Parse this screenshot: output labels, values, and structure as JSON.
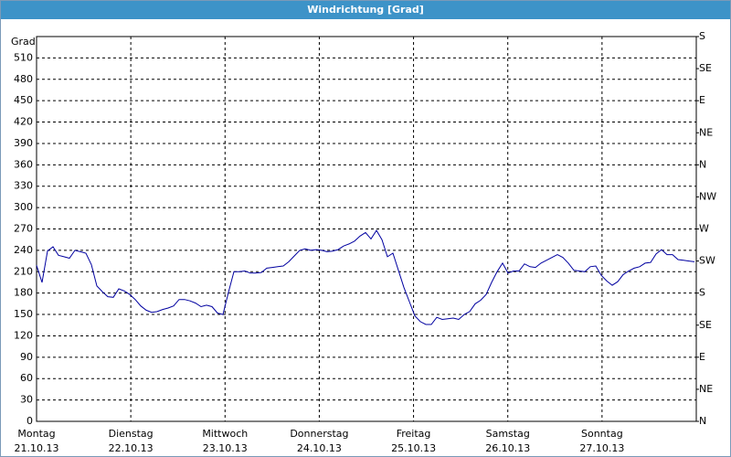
{
  "chart_data": {
    "type": "line",
    "title": "Windrichtung [Grad]",
    "y_label": "Grad",
    "ylim": [
      0,
      540
    ],
    "yticks": [
      0,
      30,
      60,
      90,
      120,
      150,
      180,
      210,
      240,
      270,
      300,
      330,
      360,
      390,
      420,
      450,
      480,
      510
    ],
    "y2lim": [
      0,
      540
    ],
    "y2ticks": [
      {
        "value": 0,
        "label": "N"
      },
      {
        "value": 45,
        "label": "NE"
      },
      {
        "value": 90,
        "label": "E"
      },
      {
        "value": 135,
        "label": "SE"
      },
      {
        "value": 180,
        "label": "S"
      },
      {
        "value": 225,
        "label": "SW"
      },
      {
        "value": 270,
        "label": "W"
      },
      {
        "value": 315,
        "label": "NW"
      },
      {
        "value": 360,
        "label": "N"
      },
      {
        "value": 405,
        "label": "NE"
      },
      {
        "value": 450,
        "label": "E"
      },
      {
        "value": 495,
        "label": "SE"
      },
      {
        "value": 540,
        "label": "S"
      }
    ],
    "xticks": [
      {
        "day": "Montag",
        "date": "21.10.13"
      },
      {
        "day": "Dienstag",
        "date": "22.10.13"
      },
      {
        "day": "Mittwoch",
        "date": "23.10.13"
      },
      {
        "day": "Donnerstag",
        "date": "24.10.13"
      },
      {
        "day": "Freitag",
        "date": "25.10.13"
      },
      {
        "day": "Samstag",
        "date": "26.10.13"
      },
      {
        "day": "Sonntag",
        "date": "27.10.13"
      }
    ],
    "grid": true,
    "series": [
      {
        "color": "#0000a0",
        "values": [
          219,
          195,
          239,
          245,
          233,
          231,
          229,
          240,
          238,
          236,
          220,
          190,
          182,
          175,
          174,
          186,
          183,
          178,
          171,
          162,
          156,
          153,
          154,
          157,
          159,
          162,
          171,
          171,
          169,
          166,
          161,
          163,
          161,
          152,
          150,
          181,
          210,
          210,
          211,
          208,
          208,
          209,
          215,
          216,
          217,
          218,
          224,
          232,
          240,
          242,
          240,
          241,
          240,
          238,
          239,
          241,
          246,
          249,
          253,
          260,
          265,
          256,
          268,
          255,
          231,
          236,
          212,
          188,
          168,
          148,
          140,
          136,
          136,
          146,
          143,
          144,
          145,
          143,
          150,
          154,
          165,
          170,
          178,
          195,
          210,
          222,
          208,
          211,
          211,
          221,
          217,
          216,
          222,
          226,
          230,
          234,
          230,
          222,
          212,
          211,
          210,
          217,
          218,
          205,
          197,
          191,
          196,
          206,
          211,
          215,
          217,
          222,
          223,
          235,
          241,
          234,
          234,
          227,
          226,
          225,
          224
        ]
      }
    ]
  }
}
